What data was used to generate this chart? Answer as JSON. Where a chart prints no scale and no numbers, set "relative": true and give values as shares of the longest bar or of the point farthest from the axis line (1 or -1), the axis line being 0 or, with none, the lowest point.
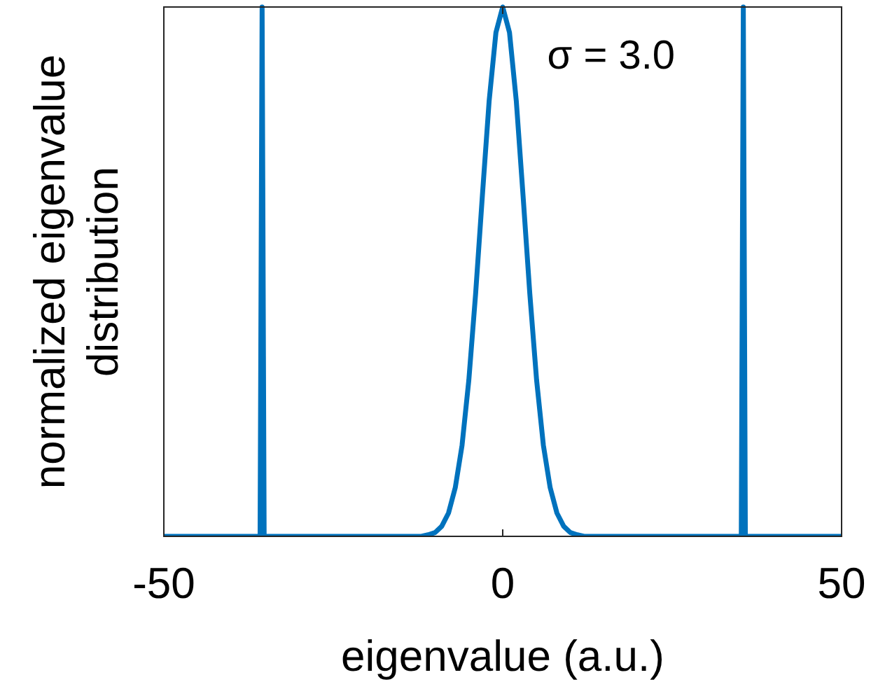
{
  "chart_data": {
    "type": "line",
    "xlabel": "eigenvalue (a.u.)",
    "ylabel": "normalized eigenvalue distribution",
    "relative": true,
    "xlim": [
      -50,
      50
    ],
    "xticks": [
      -50,
      0,
      50
    ],
    "grid": false,
    "line_style": "solid",
    "annotations": [
      "σ = 3.0"
    ],
    "series": [
      {
        "color": "#0072bd",
        "x": [
          -50,
          -36,
          -35.8,
          -35.5,
          -35.2,
          -35,
          -14,
          -12,
          -11,
          -10,
          -9,
          -8,
          -7,
          -6,
          -5,
          -4,
          -3,
          -2,
          -1,
          0,
          1,
          2,
          3,
          4,
          5,
          6,
          7,
          8,
          9,
          10,
          11,
          12,
          14,
          35,
          35.2,
          35.5,
          35.8,
          36,
          50
        ],
        "values": [
          0,
          0,
          0,
          1,
          0,
          0,
          0,
          0,
          0.003,
          0.007,
          0.019,
          0.044,
          0.092,
          0.172,
          0.295,
          0.458,
          0.644,
          0.823,
          0.952,
          1,
          0.952,
          0.823,
          0.644,
          0.458,
          0.295,
          0.172,
          0.092,
          0.044,
          0.019,
          0.007,
          0.003,
          0,
          0,
          0,
          0,
          1,
          0,
          0,
          0
        ]
      }
    ]
  }
}
